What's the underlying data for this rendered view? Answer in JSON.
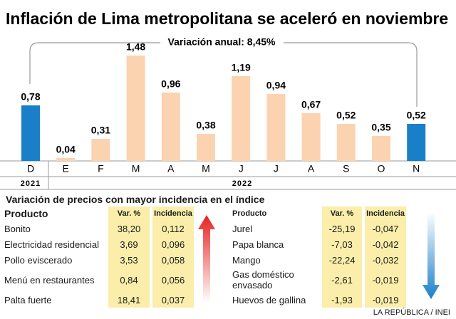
{
  "chart_data": {
    "type": "bar",
    "title": "Inflación de Lima metropolitana se aceleró en noviembre",
    "subtitle": "Variación anual: 8,45%",
    "categories": [
      "D",
      "E",
      "F",
      "M",
      "A",
      "M",
      "J",
      "J",
      "A",
      "S",
      "O",
      "N"
    ],
    "values": [
      0.78,
      0.04,
      0.31,
      1.48,
      0.96,
      0.38,
      1.19,
      0.94,
      0.67,
      0.52,
      0.35,
      0.52
    ],
    "value_labels": [
      "0,78",
      "0,04",
      "0,31",
      "1,48",
      "0,96",
      "0,38",
      "1,19",
      "0,94",
      "0,67",
      "0,52",
      "0,35",
      "0,52"
    ],
    "colors": [
      "#1a7fc9",
      "#fbd3b0",
      "#fbd3b0",
      "#fbd3b0",
      "#fbd3b0",
      "#fbd3b0",
      "#fbd3b0",
      "#fbd3b0",
      "#fbd3b0",
      "#fbd3b0",
      "#fbd3b0",
      "#1a7fc9"
    ],
    "group_labels": [
      "2021",
      "2022"
    ]
  },
  "section_title": "Variación de precios con mayor incidencia en el índice",
  "tables": [
    {
      "header": [
        "Producto",
        "Var. %",
        "Incidencia"
      ],
      "rows": [
        [
          "Bonito",
          "38,20",
          "0,112"
        ],
        [
          "Electricidad residencial",
          "3,69",
          "0,096"
        ],
        [
          "Pollo eviscerado",
          "3,53",
          "0,058"
        ],
        [
          "Menú en restaurantes",
          "0,84",
          "0,056"
        ],
        [
          "Palta fuerte",
          "18,41",
          "0,037"
        ]
      ]
    },
    {
      "header": [
        "Producto",
        "Var. %",
        "Incidencia"
      ],
      "rows": [
        [
          "Jurel",
          "-25,19",
          "-0,047"
        ],
        [
          "Papa blanca",
          "-7,03",
          "-0,042"
        ],
        [
          "Mango",
          "-22,24",
          "-0,032"
        ],
        [
          "Gas doméstico envasado",
          "-2,61",
          "-0,019"
        ],
        [
          "Huevos de gallina",
          "-1,93",
          "-0,019"
        ]
      ]
    }
  ],
  "source": "LA REPÚBLICA / INEI"
}
